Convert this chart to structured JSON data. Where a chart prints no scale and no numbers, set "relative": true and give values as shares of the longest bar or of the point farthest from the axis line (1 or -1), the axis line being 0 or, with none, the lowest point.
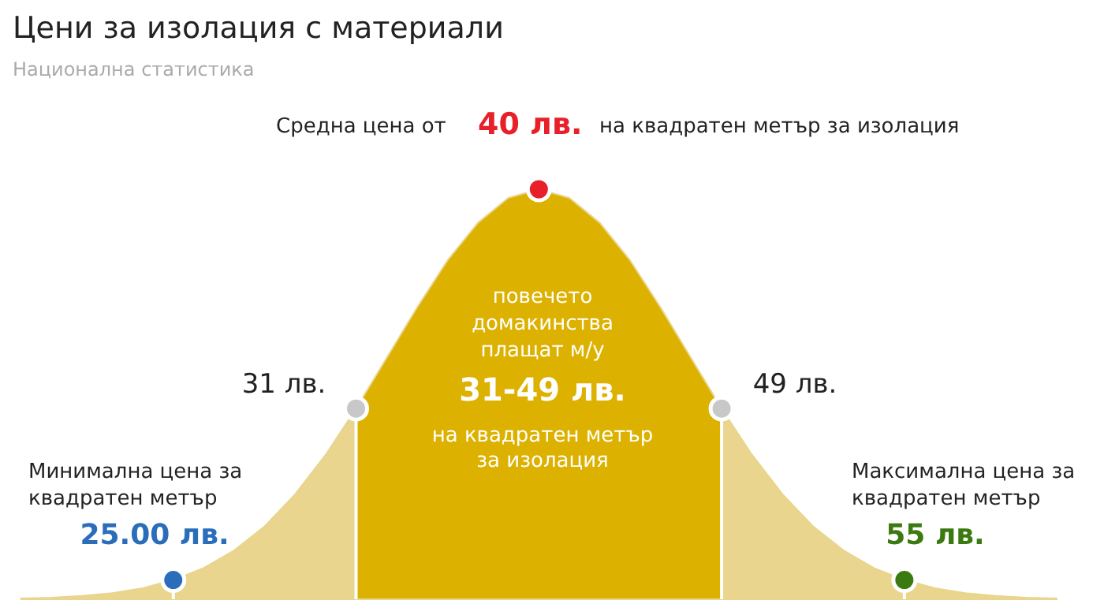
{
  "chart_data": {
    "type": "area",
    "relative": true,
    "title": "Цени за изолация с материали",
    "subtitle": "Национална статистика",
    "categories": [
      null,
      null,
      null,
      null,
      null,
      null,
      null,
      null,
      null,
      null,
      null,
      null,
      null,
      null,
      null,
      null,
      null,
      null,
      null,
      null,
      null,
      null,
      null,
      null,
      null,
      null,
      null,
      null,
      null,
      null,
      null,
      null,
      null,
      null,
      null
    ],
    "series": [
      {
        "color": "#e9d58d",
        "values": [
          0.002,
          0.004,
          0.008,
          0.015,
          0.027,
          0.047,
          0.076,
          0.119,
          0.178,
          0.256,
          0.352,
          0.465,
          0.588,
          0.711,
          0.826,
          0.918,
          0.979,
          1,
          0.979,
          0.918,
          0.826,
          0.711,
          0.588,
          0.465,
          0.352,
          0.256,
          0.178,
          0.119,
          0.076,
          0.047,
          0.027,
          0.015,
          0.008,
          0.004,
          0.002
        ],
        "colors": [
          "#e9d58d",
          "#e9d58d",
          "#e9d58d",
          "#e9d58d",
          "#e9d58d",
          "#e9d58d",
          "#e9d58d",
          "#e9d58d",
          "#e9d58d",
          "#e9d58d",
          "#e9d58d",
          "#dcb100",
          "#dcb100",
          "#dcb100",
          "#dcb100",
          "#dcb100",
          "#dcb100",
          "#dcb100",
          "#dcb100",
          "#dcb100",
          "#dcb100",
          "#dcb100",
          "#dcb100",
          "#e9d58d",
          "#e9d58d",
          "#e9d58d",
          "#e9d58d",
          "#e9d58d",
          "#e9d58d",
          "#e9d58d",
          "#e9d58d",
          "#e9d58d",
          "#e9d58d",
          "#e9d58d",
          "#e9d58d"
        ]
      }
    ],
    "annotations": [
      "Средна цена от",
      "40 лв.",
      "на квадратен метър за изолация",
      "31 лв.",
      "49 лв.",
      "повечето домакинства плащат м/у",
      "31-49 лв.",
      "на квадратен метър за изолация",
      "Минимална цена за квадратен метър",
      "25.00 лв.",
      "Максимална цена за квадратен метър",
      "55 лв."
    ]
  }
}
